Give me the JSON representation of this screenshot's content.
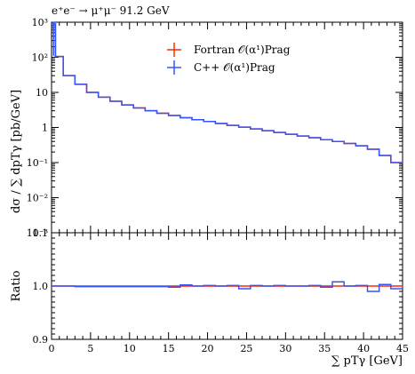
{
  "chart_data": [
    {
      "type": "line",
      "title": "e⁺e⁻ → μ⁺μ⁻ 91.2 GeV",
      "ylabel": "dσ / ∑ dpTγ [pb/GeV]",
      "xlabel": "",
      "log_y": true,
      "xlim": [
        0,
        45
      ],
      "ylim": [
        0.001,
        1000
      ],
      "yticks": [
        {
          "v": 1000,
          "label": "10³"
        },
        {
          "v": 100,
          "label": "10²"
        },
        {
          "v": 10,
          "label": "10"
        },
        {
          "v": 1,
          "label": "1"
        },
        {
          "v": 0.1,
          "label": "10⁻¹"
        },
        {
          "v": 0.01,
          "label": "10⁻²"
        },
        {
          "v": 0.001,
          "label": "10⁻³"
        }
      ],
      "legend_position": "top-right",
      "bin_edges": [
        0,
        0.5,
        1.5,
        3,
        4.5,
        6,
        7.5,
        9,
        10.5,
        12,
        13.5,
        15,
        16.5,
        18,
        19.5,
        21,
        22.5,
        24,
        25.5,
        27,
        28.5,
        30,
        31.5,
        33,
        34.5,
        36,
        37.5,
        39,
        40.5,
        42,
        43.5,
        45
      ],
      "series": [
        {
          "name": "Fortran 𝒪(α¹)Prag",
          "color": "#ff2a00",
          "values": [
            900,
            105,
            30,
            17,
            10,
            7.3,
            5.6,
            4.4,
            3.6,
            3.0,
            2.55,
            2.2,
            1.9,
            1.67,
            1.48,
            1.3,
            1.15,
            1.02,
            0.91,
            0.81,
            0.72,
            0.64,
            0.57,
            0.51,
            0.45,
            0.4,
            0.35,
            0.3,
            0.24,
            0.16,
            0.1
          ]
        },
        {
          "name": "C++ 𝒪(α¹)Prag",
          "color": "#3355ff",
          "values": [
            900,
            105,
            30,
            17,
            10,
            7.3,
            5.6,
            4.4,
            3.6,
            3.0,
            2.55,
            2.2,
            1.9,
            1.67,
            1.48,
            1.3,
            1.15,
            1.02,
            0.91,
            0.81,
            0.72,
            0.64,
            0.57,
            0.51,
            0.45,
            0.4,
            0.35,
            0.3,
            0.24,
            0.16,
            0.1
          ]
        }
      ]
    },
    {
      "type": "line",
      "ylabel": "Ratio",
      "xlabel": "∑ pTγ [GeV]",
      "xlim": [
        0,
        45
      ],
      "ylim": [
        0.9,
        1.1
      ],
      "xticks": [
        0,
        5,
        10,
        15,
        20,
        25,
        30,
        35,
        40,
        45
      ],
      "yticks": [
        {
          "v": 0.9,
          "label": "0.9"
        },
        {
          "v": 1.0,
          "label": "1.0"
        },
        {
          "v": 1.1,
          "label": "1.1"
        }
      ],
      "reference_line": 1.0,
      "bin_edges": [
        0,
        3,
        6,
        9,
        12,
        15,
        16.5,
        18,
        19.5,
        21,
        22.5,
        24,
        25.5,
        27,
        28.5,
        30,
        31.5,
        33,
        34.5,
        36,
        37.5,
        39,
        40.5,
        42,
        43.5,
        45
      ],
      "series": [
        {
          "name": "Fortran 𝒪(α¹)Prag",
          "color": "#ff2a00",
          "values": [
            1,
            1,
            1,
            1,
            1,
            1,
            1,
            1,
            1,
            1,
            1,
            1,
            1,
            1,
            1,
            1,
            1,
            1,
            1,
            1,
            1,
            1,
            1,
            1,
            1
          ]
        },
        {
          "name": "C++ 𝒪(α¹)Prag",
          "color": "#3355ff",
          "values": [
            1.0,
            0.999,
            0.999,
            0.999,
            0.999,
            0.998,
            1.002,
            1.0,
            1.001,
            1.0,
            1.001,
            0.995,
            1.001,
            1.0,
            1.001,
            1.0,
            1.0,
            1.001,
            0.998,
            1.008,
            1.0,
            1.001,
            0.99,
            1.003,
            0.995
          ]
        }
      ]
    }
  ]
}
